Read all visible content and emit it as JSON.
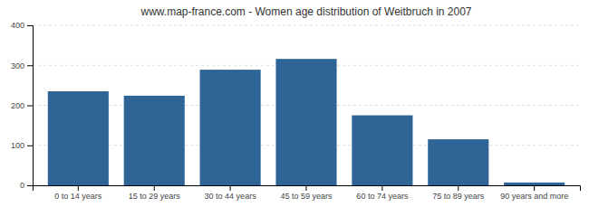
{
  "chart_data": {
    "type": "bar",
    "title": "www.map-france.com - Women age distribution of Weitbruch in 2007",
    "categories": [
      "0 to 14 years",
      "15 to 29 years",
      "30 to 44 years",
      "45 to 59 years",
      "60 to 74 years",
      "75 to 89 years",
      "90 years and more"
    ],
    "values": [
      235,
      224,
      289,
      316,
      175,
      115,
      7
    ],
    "color": "#2e6496",
    "ylim": [
      0,
      400
    ],
    "yticks": [
      0,
      100,
      200,
      300,
      400
    ],
    "grid": true
  }
}
